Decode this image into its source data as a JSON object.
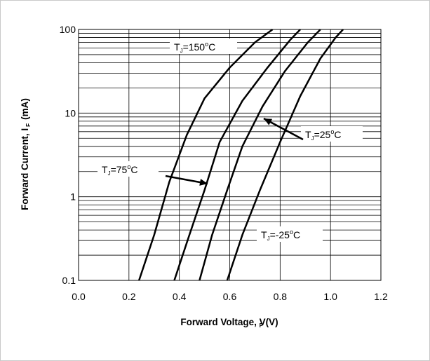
{
  "chart_data": {
    "type": "line",
    "title": "",
    "xlabel": "Forward Voltage, VF (V)",
    "xlabel_parts": {
      "main": "Forward Voltage, ",
      "sub": "F",
      "tail": "V",
      "unit": "(V)"
    },
    "ylabel": "Forward Current, I F (mA)",
    "ylabel_parts": {
      "main": "Forward Current, I",
      "sub": "F",
      "unit": "(mA)"
    },
    "x_scale": "linear",
    "y_scale": "log",
    "xlim": [
      0.0,
      1.2
    ],
    "ylim": [
      0.1,
      100
    ],
    "x_ticks": [
      "0.0",
      "0.2",
      "0.4",
      "0.6",
      "0.8",
      "1.0",
      "1.2"
    ],
    "y_ticks": [
      "0.1",
      "1",
      "10",
      "100"
    ],
    "grid": true,
    "series": [
      {
        "name": "TJ=150°C",
        "label_parts": {
          "T": "T",
          "sub": "J",
          "eq": "=150",
          "deg": "o",
          "unit": "C"
        },
        "x": [
          0.24,
          0.3,
          0.36,
          0.43,
          0.5,
          0.6,
          0.7,
          0.77
        ],
        "y": [
          0.1,
          0.35,
          1.5,
          5.5,
          15,
          35,
          70,
          100
        ]
      },
      {
        "name": "TJ=75°C",
        "label_parts": {
          "T": "T",
          "sub": "J",
          "eq": "=75",
          "deg": "o",
          "unit": "C"
        },
        "x": [
          0.38,
          0.44,
          0.5,
          0.56,
          0.65,
          0.75,
          0.84,
          0.88
        ],
        "y": [
          0.1,
          0.35,
          1.2,
          4.5,
          14,
          35,
          75,
          100
        ]
      },
      {
        "name": "TJ=25°C",
        "label_parts": {
          "T": "T",
          "sub": "J",
          "eq": "=25",
          "deg": "o",
          "unit": "C"
        },
        "x": [
          0.48,
          0.53,
          0.59,
          0.65,
          0.73,
          0.82,
          0.91,
          0.96
        ],
        "y": [
          0.1,
          0.35,
          1.2,
          4,
          12,
          32,
          70,
          100
        ]
      },
      {
        "name": "TJ=-25°C",
        "label_parts": {
          "T": "T",
          "sub": "J",
          "eq": "=-25",
          "deg": "o",
          "unit": "C"
        },
        "x": [
          0.59,
          0.65,
          0.72,
          0.8,
          0.88,
          0.96,
          1.02,
          1.05
        ],
        "y": [
          0.1,
          0.35,
          1.2,
          4.5,
          16,
          45,
          80,
          100
        ]
      }
    ]
  }
}
